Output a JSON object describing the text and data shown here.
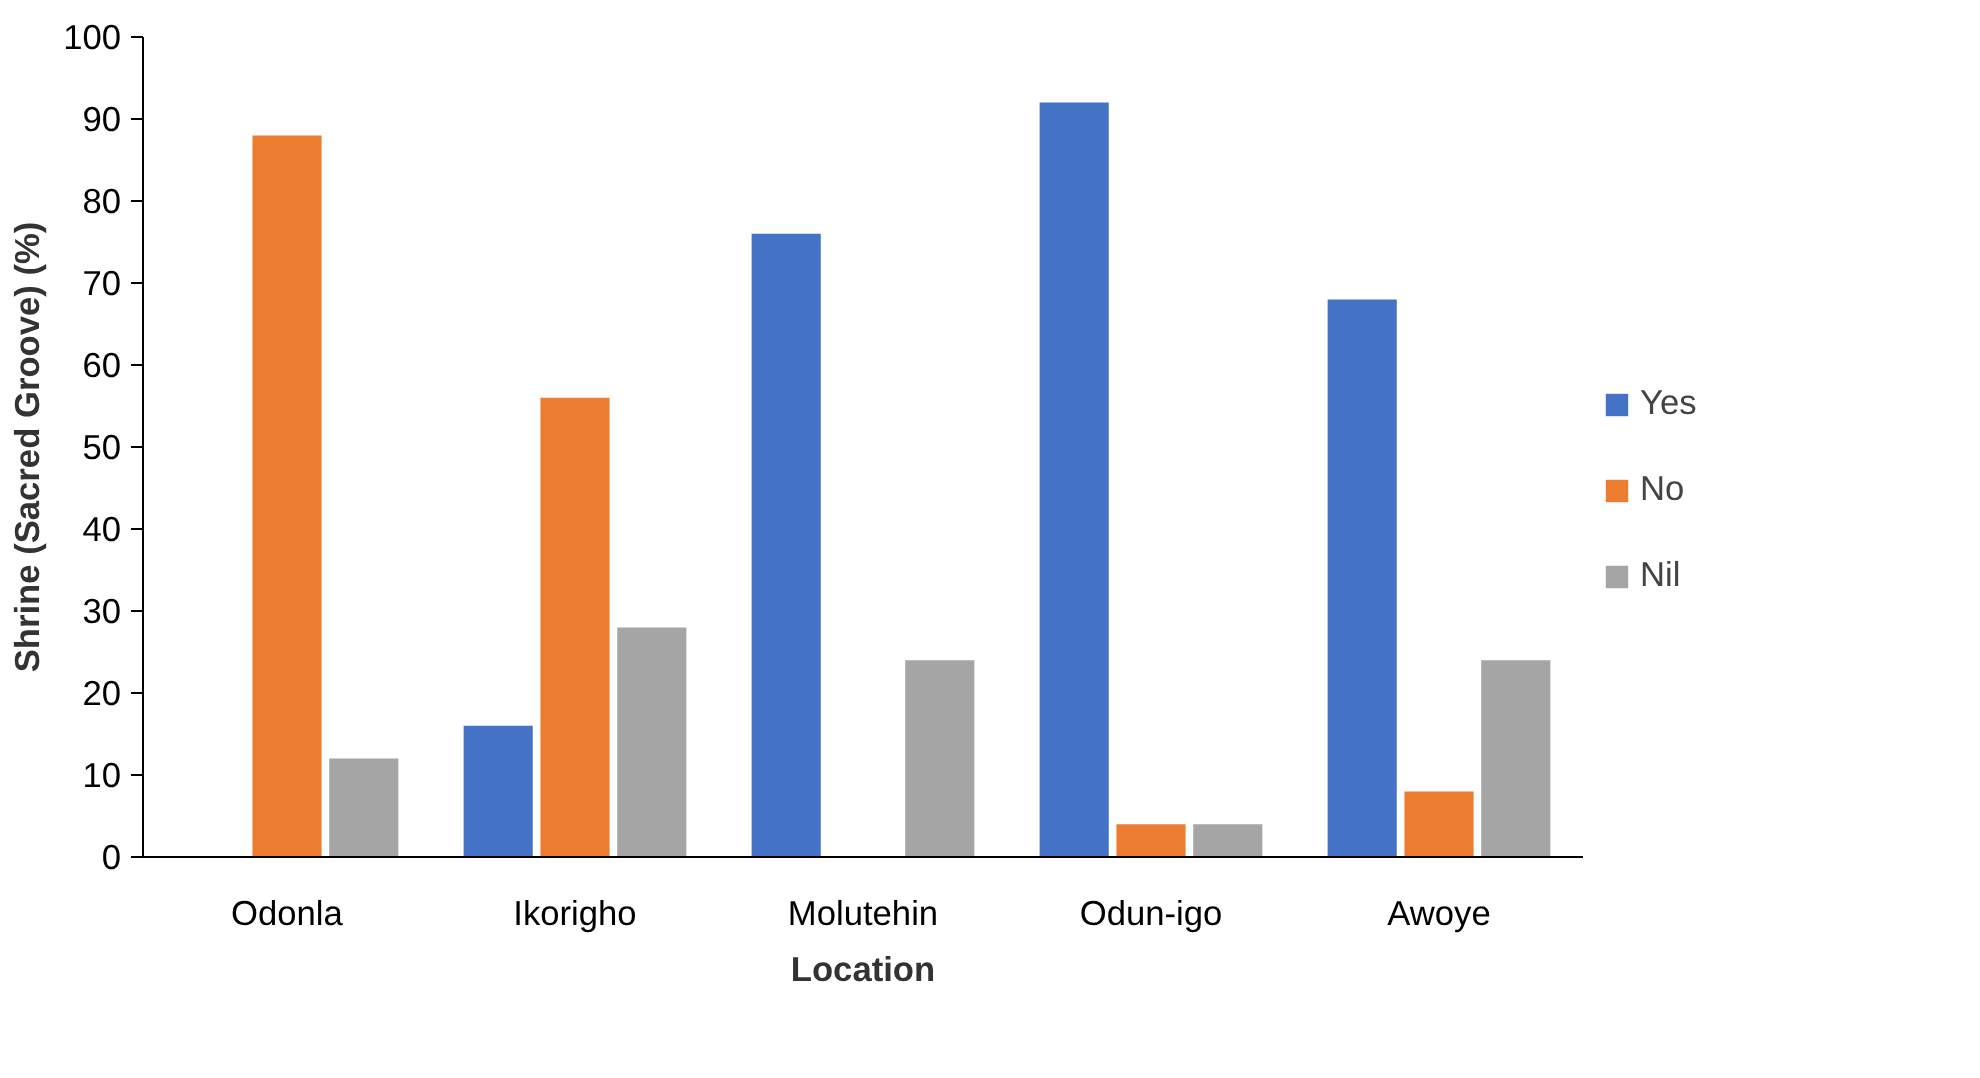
{
  "chart_data": {
    "type": "bar",
    "xlabel": "Location",
    "ylabel": "Shrine (Sacred Groove) (%)",
    "categories": [
      "Odonla",
      "Ikorigho",
      "Molutehin",
      "Odun-igo",
      "Awoye"
    ],
    "series": [
      {
        "name": "Yes",
        "color": "#4472c4",
        "values": [
          0,
          16,
          76,
          92,
          68
        ]
      },
      {
        "name": "No",
        "color": "#ed7d31",
        "values": [
          88,
          56,
          0,
          4,
          8
        ]
      },
      {
        "name": "Nil",
        "color": "#a5a5a5",
        "values": [
          12,
          28,
          24,
          4,
          24
        ]
      }
    ],
    "ylim": [
      0,
      100
    ],
    "yticks": [
      0,
      10,
      20,
      30,
      40,
      50,
      60,
      70,
      80,
      90,
      100
    ],
    "grid": false,
    "legend": "right"
  }
}
